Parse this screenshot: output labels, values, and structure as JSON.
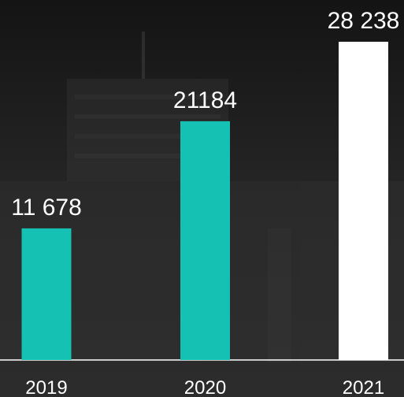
{
  "chart_data": {
    "type": "bar",
    "categories": [
      "2019",
      "2020",
      "2021"
    ],
    "values": [
      11678,
      21184,
      28238
    ],
    "value_labels": [
      "11 678",
      "21184",
      "28 238"
    ],
    "colors": [
      "#14c1b2",
      "#14c1b2",
      "#ffffff"
    ]
  }
}
